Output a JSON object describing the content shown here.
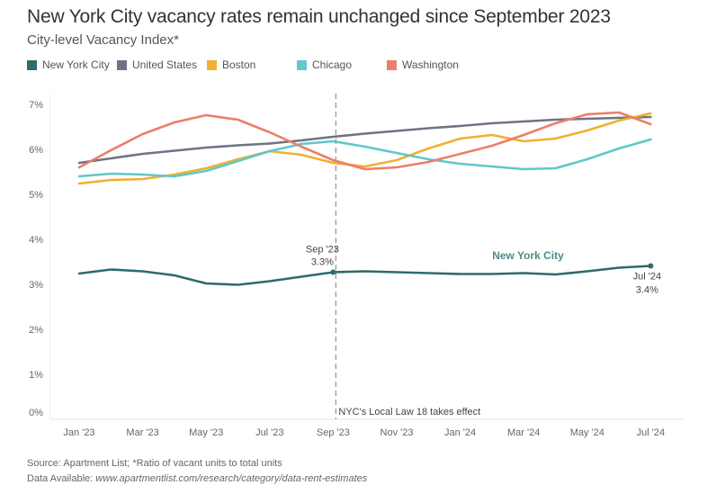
{
  "chart_data": {
    "type": "line",
    "title": "New York City vacancy rates remain unchanged since September 2023",
    "subtitle": "City-level Vacancy Index*",
    "xlabel": "",
    "ylabel": "",
    "ylim": [
      0,
      7
    ],
    "grid": false,
    "legend_position": "top-left",
    "x": [
      "Jan '23",
      "Feb '23",
      "Mar '23",
      "Apr '23",
      "May '23",
      "Jun '23",
      "Jul '23",
      "Aug '23",
      "Sep '23",
      "Oct '23",
      "Nov '23",
      "Dec '23",
      "Jan '24",
      "Feb '24",
      "Mar '24",
      "Apr '24",
      "May '24",
      "Jun '24",
      "Jul '24"
    ],
    "x_tick_labels": [
      "Jan '23",
      "Mar '23",
      "May '23",
      "Jul '23",
      "Sep '23",
      "Nov '23",
      "Jan '24",
      "Mar '24",
      "May '24",
      "Jul '24"
    ],
    "y_tick_labels": [
      "0%",
      "1%",
      "2%",
      "3%",
      "4%",
      "5%",
      "6%",
      "7%"
    ],
    "y_ticks": [
      0,
      1,
      2,
      3,
      4,
      5,
      6,
      7
    ],
    "series": [
      {
        "name": "New York City",
        "color": "#2e6b6b",
        "values": [
          3.24,
          3.33,
          3.29,
          3.2,
          3.02,
          2.99,
          3.07,
          3.17,
          3.27,
          3.29,
          3.27,
          3.25,
          3.23,
          3.23,
          3.25,
          3.22,
          3.29,
          3.37,
          3.41
        ]
      },
      {
        "name": "United States",
        "color": "#6e7483",
        "values": [
          5.7,
          5.8,
          5.9,
          5.97,
          6.04,
          6.09,
          6.13,
          6.2,
          6.28,
          6.35,
          6.41,
          6.47,
          6.52,
          6.58,
          6.62,
          6.66,
          6.68,
          6.7,
          6.72
        ]
      },
      {
        "name": "Boston",
        "color": "#f0b030",
        "values": [
          5.24,
          5.32,
          5.34,
          5.44,
          5.58,
          5.78,
          5.96,
          5.88,
          5.7,
          5.62,
          5.76,
          6.02,
          6.24,
          6.32,
          6.18,
          6.24,
          6.42,
          6.64,
          6.8
        ]
      },
      {
        "name": "Chicago",
        "color": "#5ec8cc",
        "values": [
          5.4,
          5.46,
          5.44,
          5.4,
          5.52,
          5.74,
          5.96,
          6.12,
          6.18,
          6.06,
          5.92,
          5.78,
          5.68,
          5.62,
          5.56,
          5.58,
          5.78,
          6.02,
          6.22
        ]
      },
      {
        "name": "Washington",
        "color": "#ec7e6a",
        "values": [
          5.6,
          5.98,
          6.34,
          6.6,
          6.76,
          6.66,
          6.38,
          6.06,
          5.76,
          5.56,
          5.6,
          5.72,
          5.9,
          6.08,
          6.32,
          6.58,
          6.78,
          6.82,
          6.56
        ]
      }
    ],
    "annotations": [
      {
        "x": "Sep '23",
        "type": "vertical-dashed-line",
        "label": "NYC's Local Law 18 takes effect"
      },
      {
        "x": "Sep '23",
        "series": "New York City",
        "label_line1": "Sep '23",
        "label_line2": "3.3%"
      },
      {
        "x": "Jul '24",
        "series": "New York City",
        "label_line1": "Jul '24",
        "label_line2": "3.4%"
      },
      {
        "series": "New York City",
        "label": "New York City",
        "type": "series-label"
      }
    ]
  },
  "header": {
    "title": "New York City vacancy rates remain unchanged since September 2023",
    "subtitle": "City-level Vacancy Index*"
  },
  "legend": [
    {
      "label": "New York City",
      "color": "#2e6b6b"
    },
    {
      "label": "United States",
      "color": "#6e7483"
    },
    {
      "label": "Boston",
      "color": "#f0b030"
    },
    {
      "label": "Chicago",
      "color": "#5ec8cc"
    },
    {
      "label": "Washington",
      "color": "#ec7e6a"
    }
  ],
  "footer": {
    "source": "Source: Apartment List; *Ratio of vacant units to total units",
    "data_prefix": "Data Available: ",
    "data_link": "www.apartmentlist.com/research/category/data-rent-estimates"
  }
}
